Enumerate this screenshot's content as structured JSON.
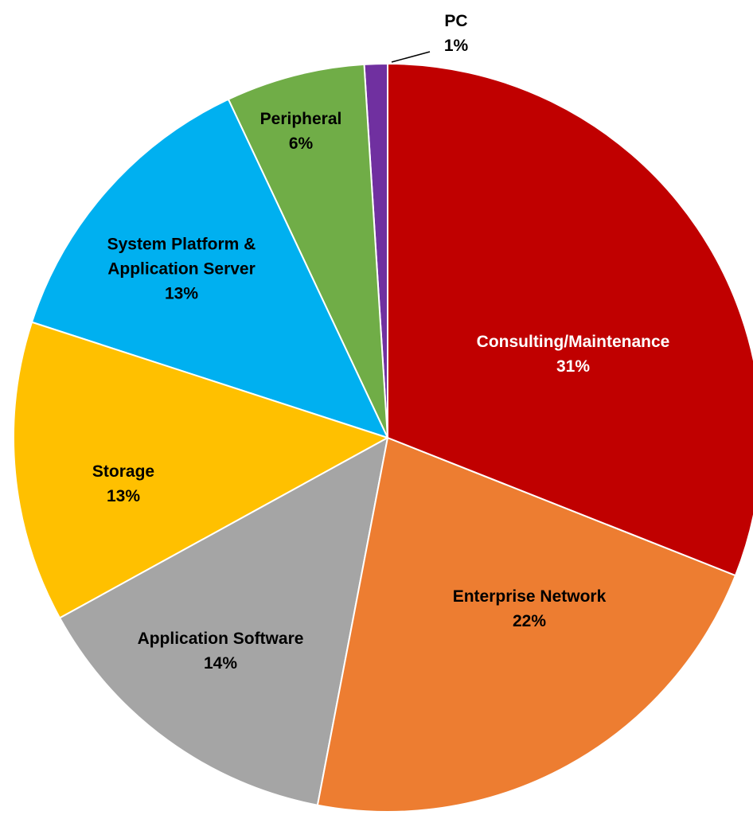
{
  "chart_data": {
    "type": "pie",
    "categories": [
      "Consulting/Maintenance",
      "Enterprise Network",
      "Application Software",
      "Storage",
      "System Platform & Application Server",
      "Peripheral",
      "PC"
    ],
    "values": [
      31,
      22,
      14,
      13,
      13,
      6,
      1
    ],
    "value_labels": [
      "31%",
      "22%",
      "14%",
      "13%",
      "13%",
      "6%",
      "1%"
    ],
    "colors": [
      "#c00000",
      "#ed7d31",
      "#a5a5a5",
      "#ffc000",
      "#00b0f0",
      "#70ad47",
      "#7030a0"
    ]
  }
}
